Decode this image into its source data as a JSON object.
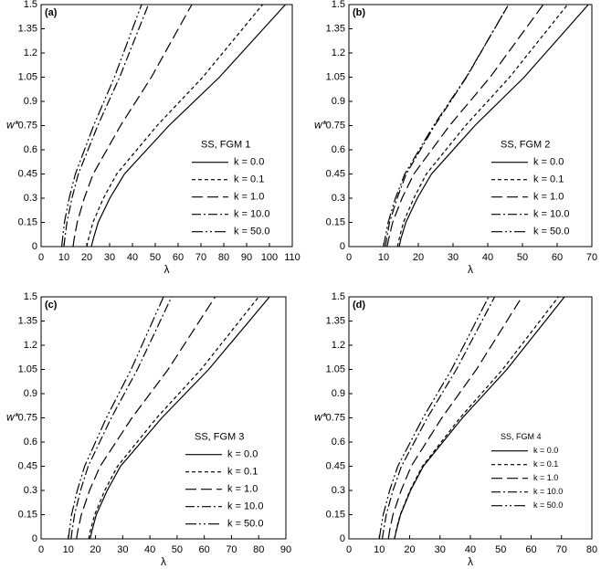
{
  "chart_data": [
    {
      "type": "line",
      "panel_label": "(a)",
      "x_label": "λ",
      "y_label": "w*",
      "legend_title": "SS, FGM 1",
      "legend": "lower right",
      "xlim": [
        0,
        110
      ],
      "xticks": [
        0,
        10,
        20,
        30,
        40,
        50,
        60,
        70,
        80,
        90,
        100,
        110
      ],
      "ylim": [
        0,
        1.5
      ],
      "yticks": [
        0,
        0.15,
        0.3,
        0.45,
        0.6,
        0.75,
        0.9,
        1.05,
        1.2,
        1.35,
        1.5
      ],
      "series": [
        {
          "name": "k = 0.0",
          "color": "#000",
          "dash": "solid",
          "x": [
            22,
            22.9,
            25.0,
            30.1,
            36.5,
            56,
            78.1,
            107
          ],
          "values": [
            0,
            0.05,
            0.15,
            0.3,
            0.45,
            0.75,
            1.05,
            1.5
          ]
        },
        {
          "name": "k = 0.1",
          "color": "#000",
          "dash": "short",
          "x": [
            20,
            20.8,
            22.7,
            27.3,
            33.1,
            50.8,
            70.8,
            97
          ],
          "values": [
            0,
            0.05,
            0.15,
            0.3,
            0.45,
            0.75,
            1.05,
            1.5
          ]
        },
        {
          "name": "k = 1.0",
          "color": "#000",
          "dash": "long",
          "x": [
            14,
            14.5,
            15.8,
            18.9,
            22.8,
            34.8,
            48.3,
            66
          ],
          "values": [
            0,
            0.05,
            0.15,
            0.3,
            0.45,
            0.75,
            1.05,
            1.5
          ]
        },
        {
          "name": "k = 10.0",
          "color": "#000",
          "dash": "dashdot",
          "x": [
            10,
            10.4,
            11.3,
            13.5,
            16.3,
            24.8,
            34.4,
            47
          ],
          "values": [
            0,
            0.05,
            0.15,
            0.3,
            0.45,
            0.75,
            1.05,
            1.5
          ]
        },
        {
          "name": "k = 50.0",
          "color": "#000",
          "dash": "dashdotdot",
          "x": [
            9,
            9.4,
            10.2,
            12.3,
            15,
            23,
            32.1,
            44
          ],
          "values": [
            0,
            0.05,
            0.15,
            0.3,
            0.45,
            0.75,
            1.05,
            1.5
          ]
        }
      ]
    },
    {
      "type": "line",
      "panel_label": "(b)",
      "x_label": "λ",
      "y_label": "w*",
      "legend_title": "SS, FGM 2",
      "legend": "lower right",
      "xlim": [
        0,
        70
      ],
      "xticks": [
        0,
        10,
        20,
        30,
        40,
        50,
        60,
        70
      ],
      "ylim": [
        0,
        1.5
      ],
      "yticks": [
        0,
        0.15,
        0.3,
        0.45,
        0.6,
        0.75,
        0.9,
        1.05,
        1.2,
        1.35,
        1.5
      ],
      "series": [
        {
          "name": "k = 0.0",
          "color": "#000",
          "dash": "solid",
          "x": [
            14.5,
            15.0,
            16.4,
            19.7,
            23.8,
            36.3,
            50.5,
            69
          ],
          "values": [
            0,
            0.05,
            0.15,
            0.3,
            0.45,
            0.75,
            1.05,
            1.5
          ]
        },
        {
          "name": "k = 0.1",
          "color": "#000",
          "dash": "short",
          "x": [
            14,
            14.5,
            15.7,
            18.7,
            22.3,
            33.6,
            46.3,
            63
          ],
          "values": [
            0,
            0.05,
            0.15,
            0.3,
            0.45,
            0.75,
            1.05,
            1.5
          ]
        },
        {
          "name": "k = 1.0",
          "color": "#000",
          "dash": "long",
          "x": [
            11,
            11.5,
            12.6,
            15.3,
            18.7,
            29,
            40.7,
            56
          ],
          "values": [
            0,
            0.05,
            0.15,
            0.3,
            0.45,
            0.75,
            1.05,
            1.5
          ]
        },
        {
          "name": "k = 10.0",
          "color": "#000",
          "dash": "dashdot",
          "x": [
            10.5,
            10.9,
            11.7,
            13.9,
            16.5,
            24.7,
            33.9,
            46
          ],
          "values": [
            0,
            0.05,
            0.15,
            0.3,
            0.45,
            0.75,
            1.05,
            1.5
          ]
        },
        {
          "name": "k = 50.0",
          "color": "#000",
          "dash": "dashdotdot",
          "x": [
            10,
            10.4,
            11.3,
            13.4,
            16.1,
            24.4,
            33.8,
            46
          ],
          "values": [
            0,
            0.05,
            0.15,
            0.3,
            0.45,
            0.75,
            1.05,
            1.5
          ]
        }
      ]
    },
    {
      "type": "line",
      "panel_label": "(c)",
      "x_label": "λ",
      "y_label": "w*",
      "legend_title": "SS, FGM 3",
      "legend": "lower right",
      "xlim": [
        0,
        90
      ],
      "xticks": [
        0,
        10,
        20,
        30,
        40,
        50,
        60,
        70,
        80,
        90
      ],
      "ylim": [
        0,
        1.5
      ],
      "yticks": [
        0,
        0.15,
        0.3,
        0.45,
        0.6,
        0.75,
        0.9,
        1.05,
        1.2,
        1.35,
        1.5
      ],
      "series": [
        {
          "name": "k = 0.0",
          "color": "#000",
          "dash": "solid",
          "x": [
            18,
            18.7,
            20.3,
            24.3,
            29.2,
            44.4,
            61.6,
            84
          ],
          "values": [
            0,
            0.05,
            0.15,
            0.3,
            0.45,
            0.75,
            1.05,
            1.5
          ]
        },
        {
          "name": "k = 0.1",
          "color": "#000",
          "dash": "short",
          "x": [
            17.5,
            18.1,
            19.7,
            23.4,
            28.1,
            42.5,
            58.8,
            80
          ],
          "values": [
            0,
            0.05,
            0.15,
            0.3,
            0.45,
            0.75,
            1.05,
            1.5
          ]
        },
        {
          "name": "k = 1.0",
          "color": "#000",
          "dash": "long",
          "x": [
            13,
            13.5,
            14.8,
            17.8,
            21.7,
            33.4,
            46.7,
            64
          ],
          "values": [
            0,
            0.05,
            0.15,
            0.3,
            0.45,
            0.75,
            1.05,
            1.5
          ]
        },
        {
          "name": "k = 10.0",
          "color": "#000",
          "dash": "dashdot",
          "x": [
            11,
            11.4,
            12.3,
            14.5,
            17.3,
            25.8,
            35.4,
            48
          ],
          "values": [
            0,
            0.05,
            0.15,
            0.3,
            0.45,
            0.75,
            1.05,
            1.5
          ]
        },
        {
          "name": "k = 50.0",
          "color": "#000",
          "dash": "dashdotdot",
          "x": [
            10,
            10.4,
            11.2,
            13.3,
            16,
            24,
            33.1,
            45
          ],
          "values": [
            0,
            0.05,
            0.15,
            0.3,
            0.45,
            0.75,
            1.05,
            1.5
          ]
        }
      ]
    },
    {
      "type": "line",
      "panel_label": "(d)",
      "x_label": "λ",
      "y_label": "w*",
      "legend_title": "SS, FGM 4",
      "legend": "lower right",
      "xlim": [
        0,
        80
      ],
      "xticks": [
        0,
        10,
        20,
        30,
        40,
        50,
        60,
        70,
        80
      ],
      "ylim": [
        0,
        1.5
      ],
      "yticks": [
        0,
        0.15,
        0.3,
        0.45,
        0.6,
        0.75,
        0.9,
        1.05,
        1.2,
        1.35,
        1.5
      ],
      "series": [
        {
          "name": "k = 0.0",
          "color": "#000",
          "dash": "solid",
          "x": [
            15,
            15.6,
            17,
            20.3,
            24.5,
            37.4,
            52,
            71
          ],
          "values": [
            0,
            0.05,
            0.15,
            0.3,
            0.45,
            0.75,
            1.05,
            1.5
          ]
        },
        {
          "name": "k = 0.1",
          "color": "#000",
          "dash": "short",
          "x": [
            15,
            15.5,
            16.9,
            20.1,
            24.2,
            36.6,
            50.6,
            69
          ],
          "values": [
            0,
            0.05,
            0.15,
            0.3,
            0.45,
            0.75,
            1.05,
            1.5
          ]
        },
        {
          "name": "k = 1.0",
          "color": "#000",
          "dash": "long",
          "x": [
            13,
            13.4,
            14.5,
            17.2,
            20.5,
            30.6,
            42,
            57
          ],
          "values": [
            0,
            0.05,
            0.15,
            0.3,
            0.45,
            0.75,
            1.05,
            1.5
          ]
        },
        {
          "name": "k = 10.0",
          "color": "#000",
          "dash": "dashdot",
          "x": [
            11,
            11.4,
            12.3,
            14.5,
            17.3,
            25.8,
            35.4,
            48
          ],
          "values": [
            0,
            0.05,
            0.15,
            0.3,
            0.45,
            0.75,
            1.05,
            1.5
          ]
        },
        {
          "name": "k = 50.0",
          "color": "#000",
          "dash": "dashdotdot",
          "x": [
            10,
            10.4,
            11.3,
            13.4,
            16.1,
            24.4,
            33.8,
            46
          ],
          "values": [
            0,
            0.05,
            0.15,
            0.3,
            0.45,
            0.75,
            1.05,
            1.5
          ]
        }
      ]
    }
  ]
}
